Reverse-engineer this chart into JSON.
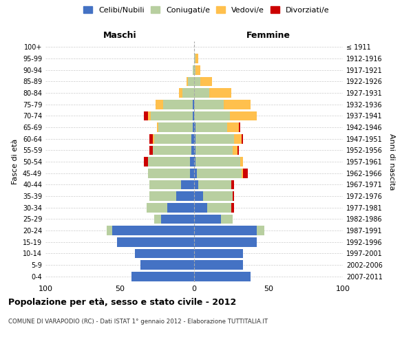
{
  "age_groups": [
    "0-4",
    "5-9",
    "10-14",
    "15-19",
    "20-24",
    "25-29",
    "30-34",
    "35-39",
    "40-44",
    "45-49",
    "50-54",
    "55-59",
    "60-64",
    "65-69",
    "70-74",
    "75-79",
    "80-84",
    "85-89",
    "90-94",
    "95-99",
    "100+"
  ],
  "birth_years": [
    "2007-2011",
    "2002-2006",
    "1997-2001",
    "1992-1996",
    "1987-1991",
    "1982-1986",
    "1977-1981",
    "1972-1976",
    "1967-1971",
    "1962-1966",
    "1957-1961",
    "1952-1956",
    "1947-1951",
    "1942-1946",
    "1937-1941",
    "1932-1936",
    "1927-1931",
    "1922-1926",
    "1917-1921",
    "1912-1916",
    "≤ 1911"
  ],
  "males": {
    "celibi": [
      42,
      36,
      40,
      52,
      55,
      22,
      18,
      12,
      9,
      3,
      3,
      2,
      2,
      1,
      1,
      1,
      0,
      0,
      0,
      0,
      0
    ],
    "coniugati": [
      0,
      0,
      0,
      0,
      4,
      5,
      14,
      18,
      21,
      28,
      28,
      26,
      25,
      23,
      28,
      20,
      8,
      4,
      1,
      0,
      0
    ],
    "vedovi": [
      0,
      0,
      0,
      0,
      0,
      0,
      0,
      0,
      0,
      0,
      0,
      0,
      1,
      1,
      2,
      5,
      2,
      1,
      0,
      0,
      0
    ],
    "divorziati": [
      0,
      0,
      0,
      0,
      0,
      0,
      0,
      0,
      0,
      0,
      3,
      2,
      2,
      0,
      3,
      0,
      0,
      0,
      0,
      0,
      0
    ]
  },
  "females": {
    "nubili": [
      38,
      33,
      33,
      42,
      42,
      18,
      9,
      6,
      3,
      2,
      1,
      1,
      1,
      1,
      0,
      0,
      0,
      0,
      0,
      0,
      0
    ],
    "coniugate": [
      0,
      0,
      0,
      0,
      5,
      8,
      16,
      20,
      22,
      30,
      30,
      25,
      26,
      21,
      24,
      20,
      10,
      4,
      1,
      1,
      0
    ],
    "vedove": [
      0,
      0,
      0,
      0,
      0,
      0,
      0,
      0,
      0,
      1,
      2,
      3,
      5,
      8,
      18,
      18,
      15,
      8,
      3,
      2,
      0
    ],
    "divorziate": [
      0,
      0,
      0,
      0,
      0,
      0,
      2,
      1,
      2,
      3,
      0,
      1,
      1,
      1,
      0,
      0,
      0,
      0,
      0,
      0,
      0
    ]
  },
  "colors": {
    "celibi": "#4472C4",
    "coniugati": "#b8cfa0",
    "vedovi": "#ffc04d",
    "divorziati": "#cc0000"
  },
  "title": "Popolazione per età, sesso e stato civile - 2012",
  "subtitle": "COMUNE DI VARAPODIO (RC) - Dati ISTAT 1° gennaio 2012 - Elaborazione TUTTITALIA.IT",
  "xlabel_left": "Maschi",
  "xlabel_right": "Femmine",
  "ylabel_left": "Fasce di età",
  "ylabel_right": "Anni di nascita",
  "xlim": 100,
  "legend_labels": [
    "Celibi/Nubili",
    "Coniugati/e",
    "Vedovi/e",
    "Divorziati/e"
  ]
}
